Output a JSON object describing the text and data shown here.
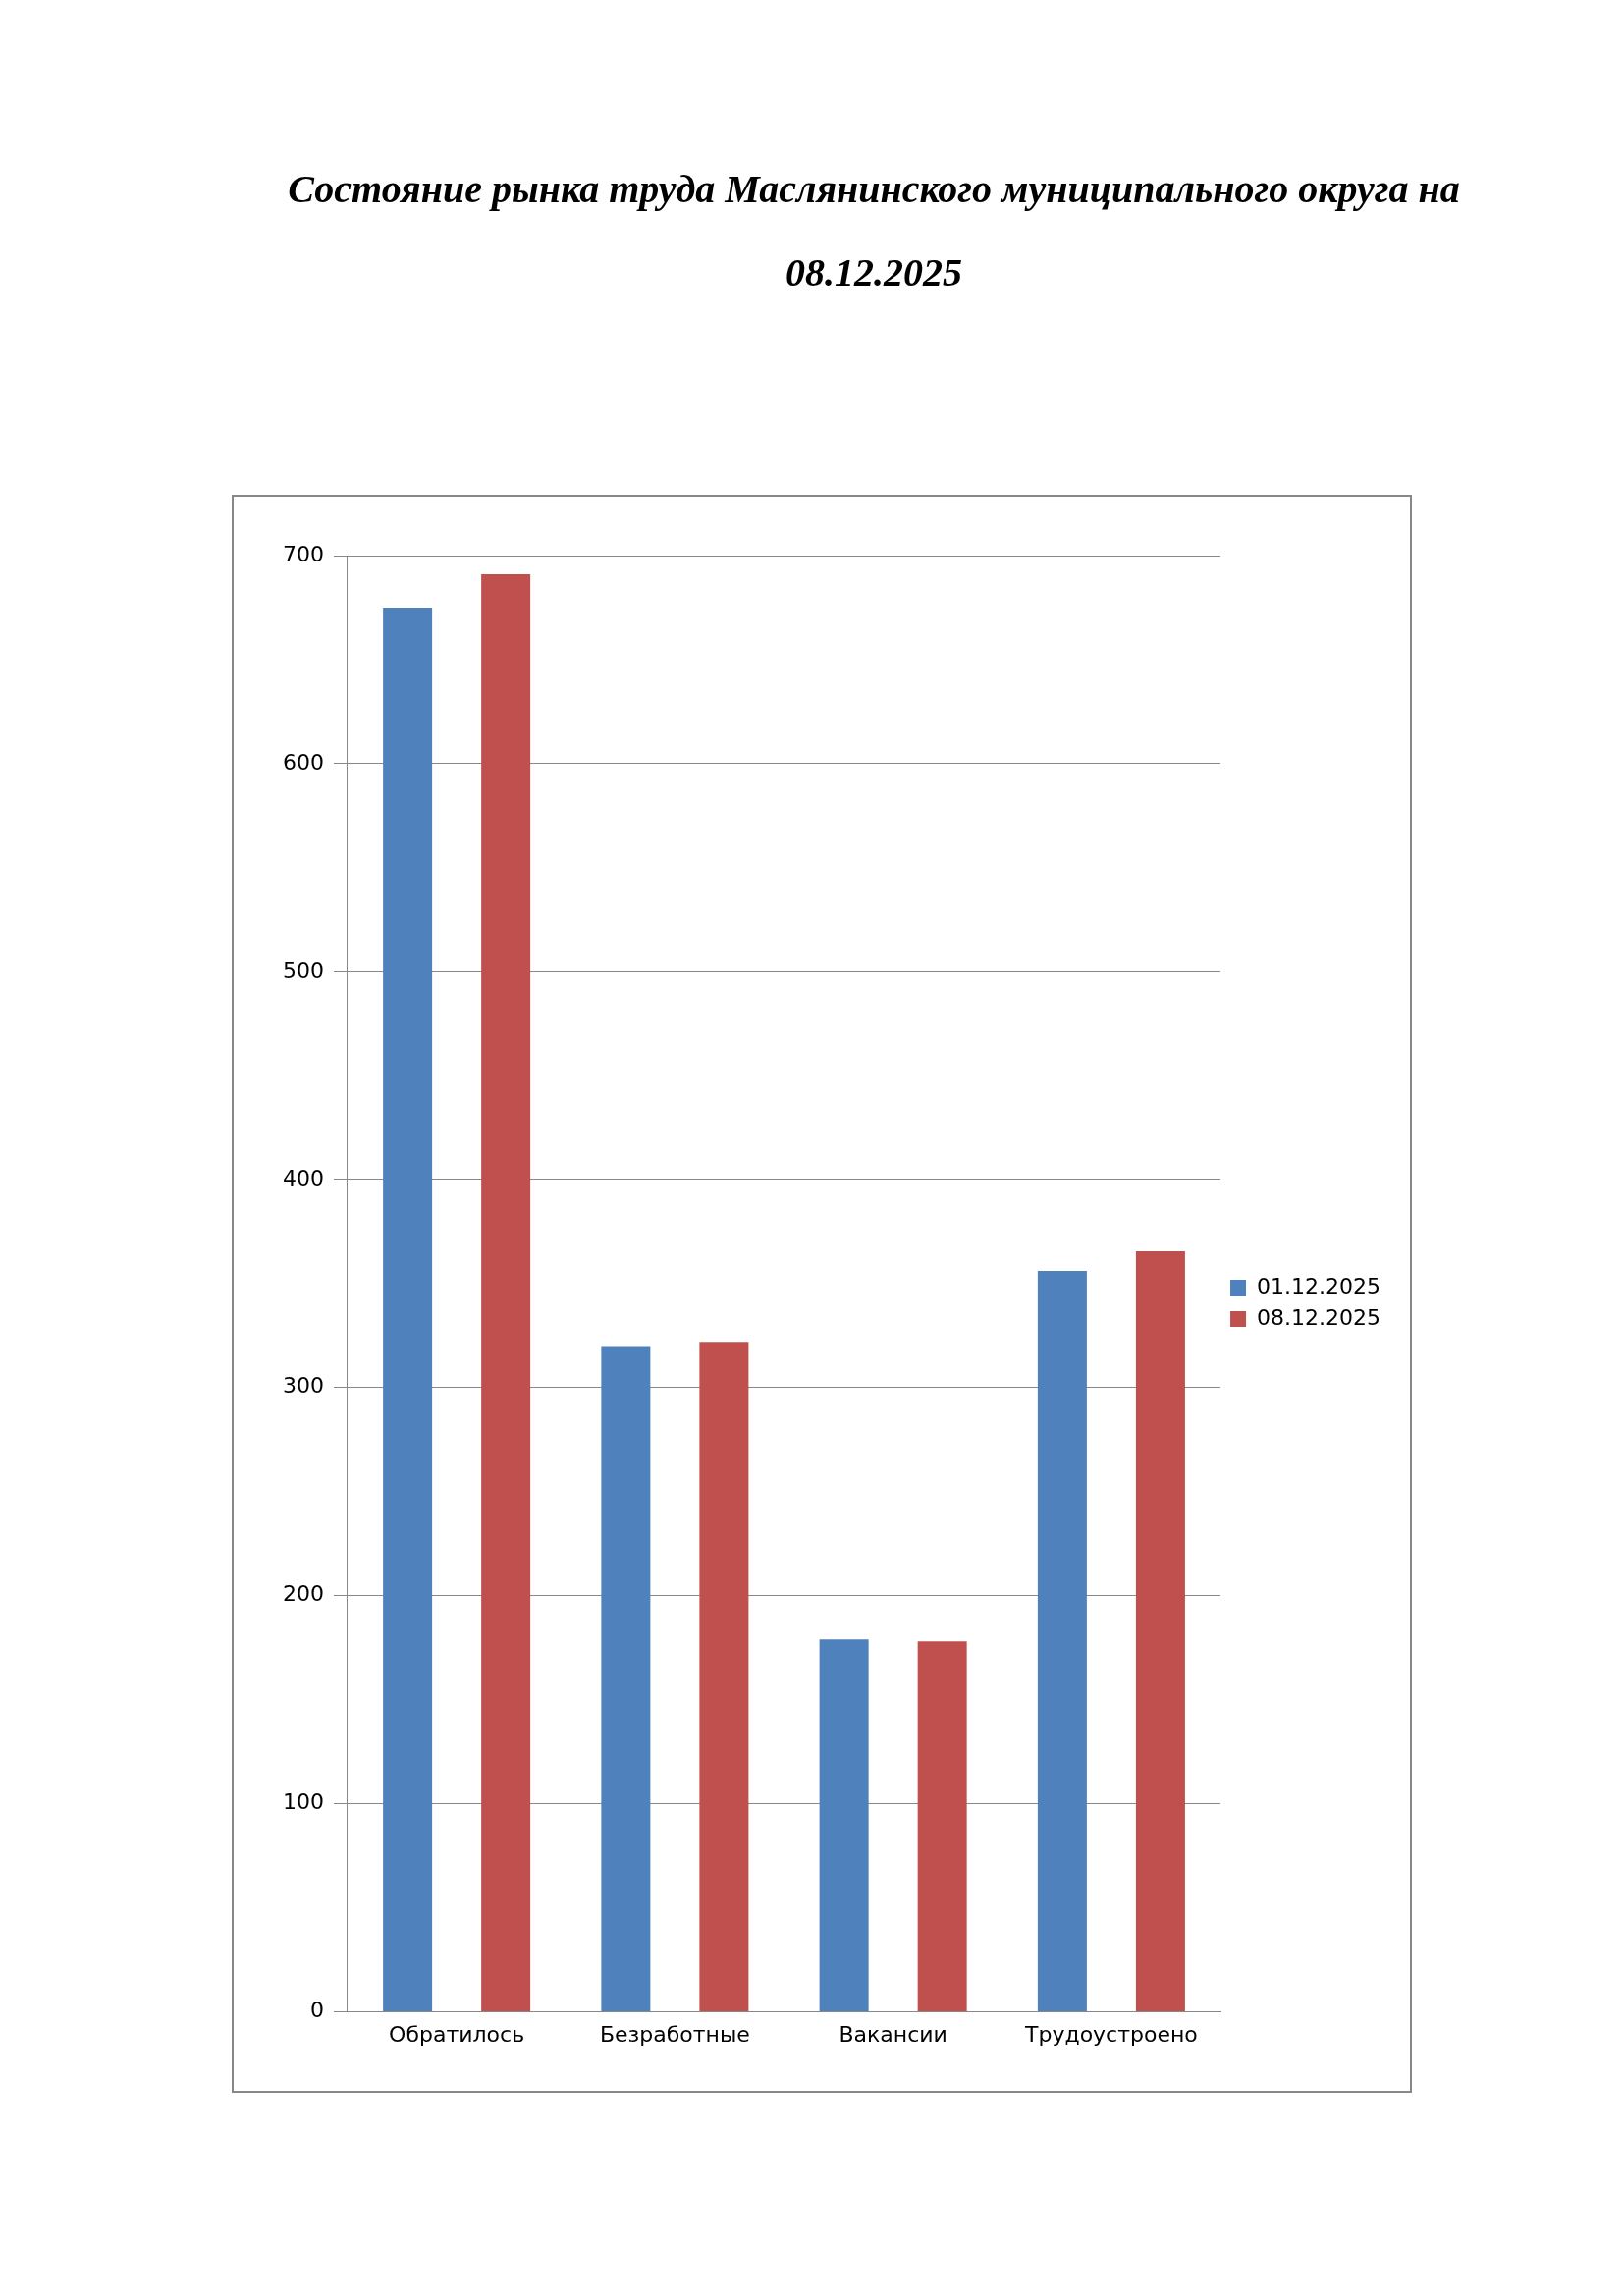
{
  "chart_data": {
    "type": "bar",
    "title": "Состояние рынка труда Маслянинского муниципального округа на 08.12.2025",
    "categories": [
      "Обратилось",
      "Безработные",
      "Вакансии",
      "Трудоустроено"
    ],
    "series": [
      {
        "name": "01.12.2025",
        "color": "#4f81bd",
        "values": [
          675,
          320,
          179,
          356
        ]
      },
      {
        "name": "08.12.2025",
        "color": "#c0504d",
        "values": [
          691,
          322,
          178,
          366
        ]
      }
    ],
    "ylim": [
      0,
      700
    ],
    "yticks": [
      0,
      100,
      200,
      300,
      400,
      500,
      600,
      700
    ],
    "grid": "y",
    "legend": "right"
  }
}
